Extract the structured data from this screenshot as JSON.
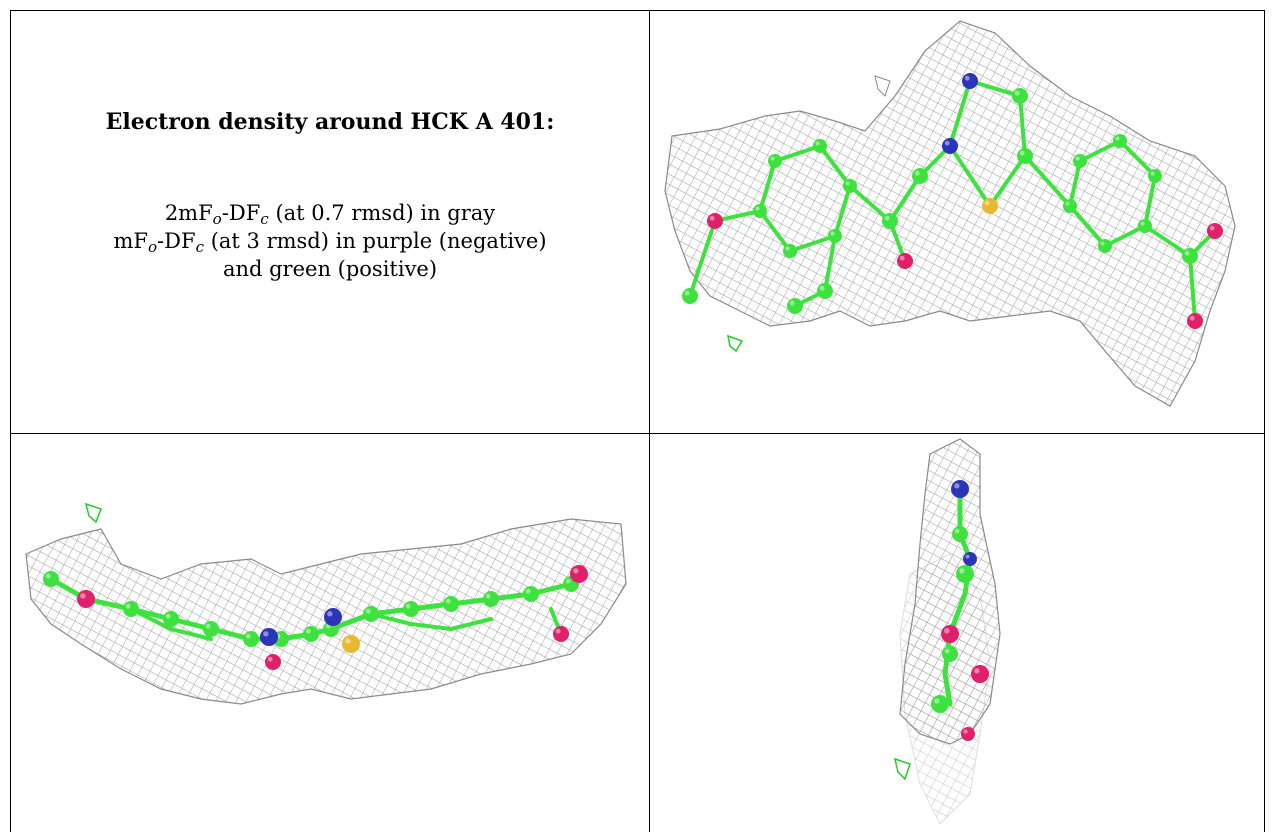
{
  "caption": {
    "title": "Electron density around HCK A 401:",
    "line1": {
      "prefix": "2mF",
      "sub1": "o",
      "mid": "-DF",
      "sub2": "c",
      "suffix": " (at 0.7 rmsd) in gray"
    },
    "line2": {
      "prefix": "mF",
      "sub1": "o",
      "mid": "-DF",
      "sub2": "c",
      "suffix": " (at 3 rmsd) in purple (negative)"
    },
    "line3": "and green (positive)"
  },
  "colors": {
    "mesh": "#9a9a9a",
    "carbon": "#3ee23e",
    "nitrogen": "#2a35b8",
    "oxygen": "#e0206a",
    "sulfur": "#e8b830",
    "positive_density": "#22cc22"
  },
  "panels": [
    "view-front",
    "view-side-horizontal",
    "view-end-on"
  ]
}
